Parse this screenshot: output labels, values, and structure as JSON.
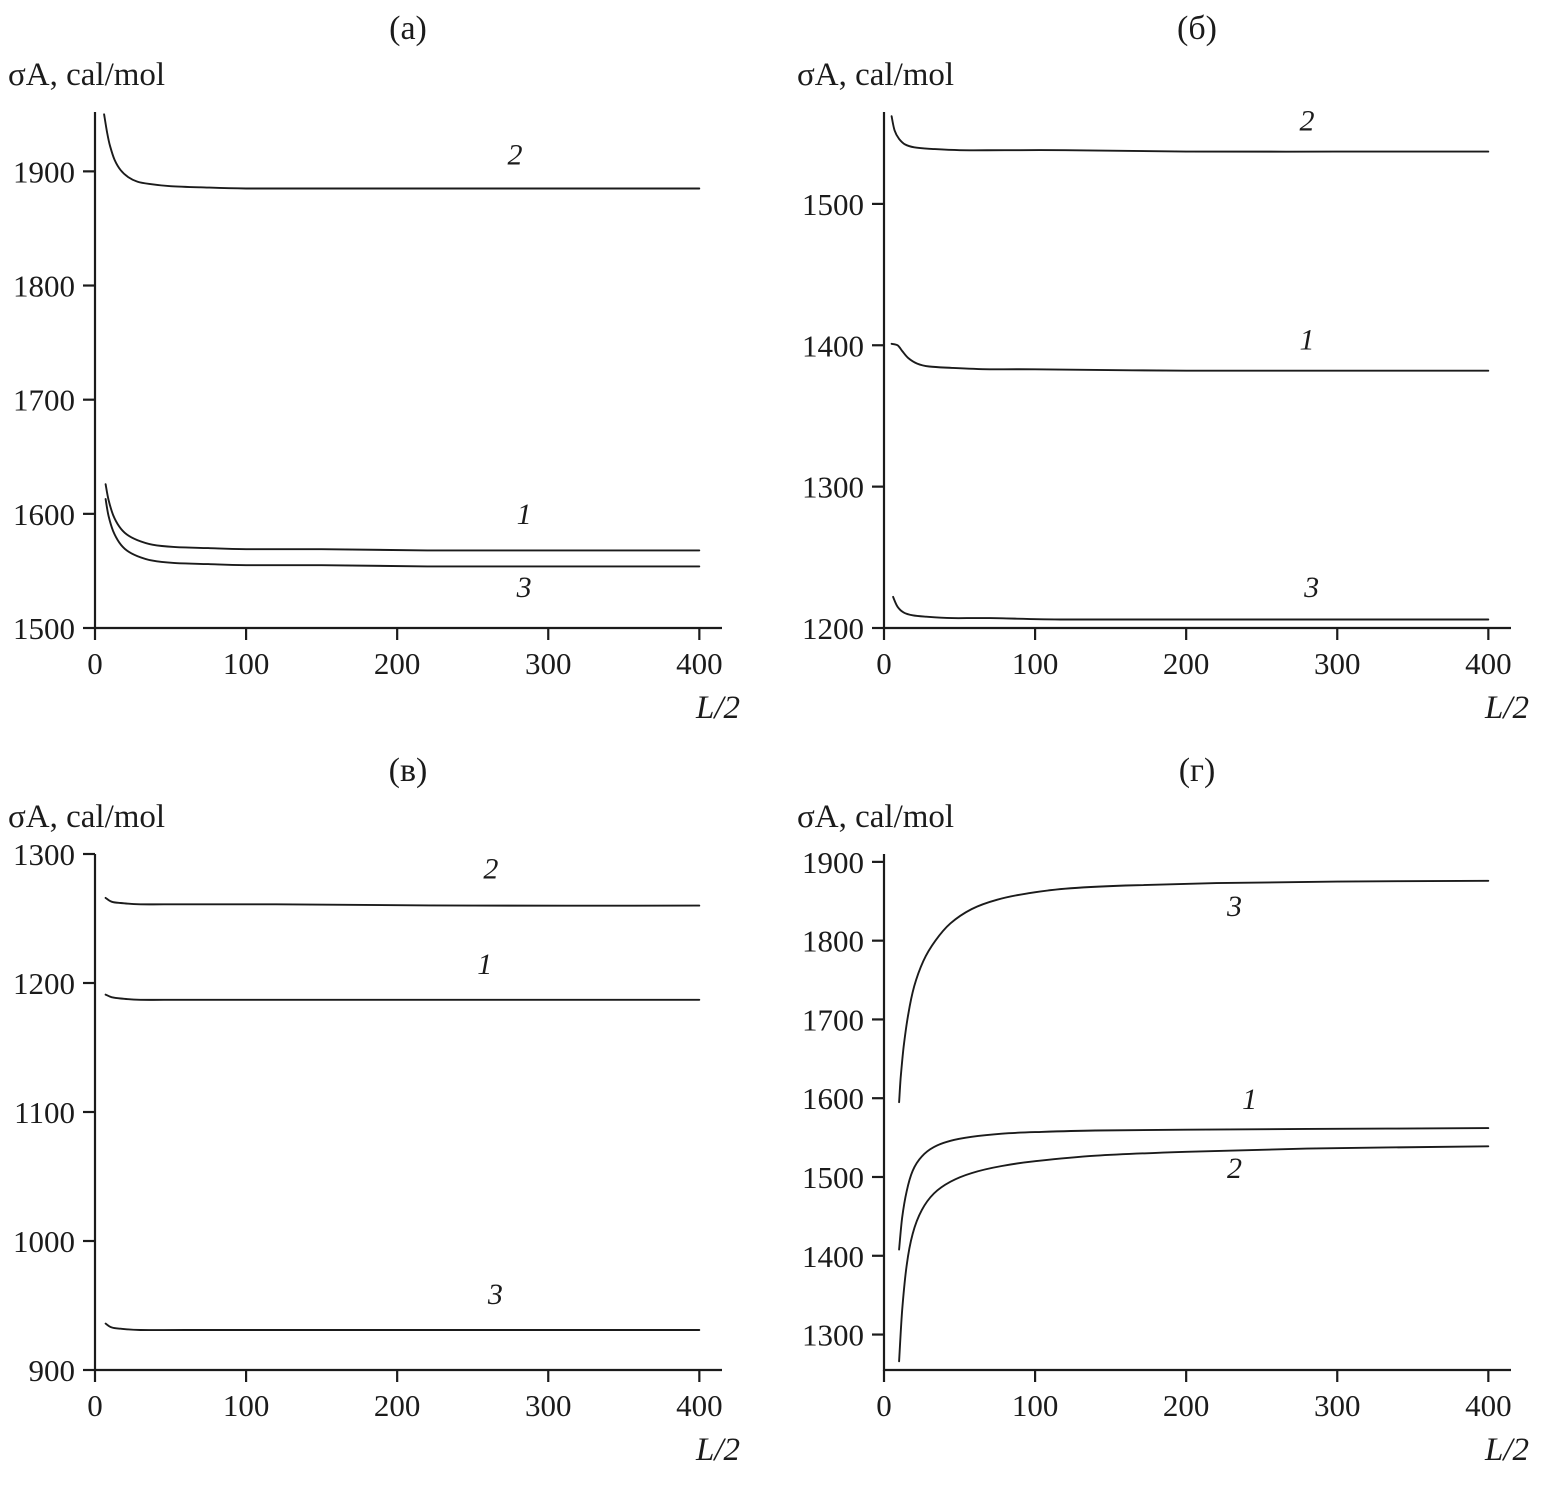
{
  "style": {
    "background": "#ffffff",
    "line_color": "#1b1b1b"
  },
  "chart_data": [
    {
      "id": "a",
      "type": "line",
      "title": "(а)",
      "ylabel": "σA, cal/mol",
      "xlabel": "L/2",
      "x_ticks": [
        0,
        100,
        200,
        300,
        400
      ],
      "y_ticks": [
        1500,
        1600,
        1700,
        1800,
        1900
      ],
      "x_range": [
        0,
        415
      ],
      "y_range": [
        1500,
        1952
      ],
      "grid": false,
      "series": [
        {
          "name": "2",
          "label_pos": [
            278,
            1906
          ],
          "points": [
            [
              6,
              1950
            ],
            [
              8,
              1934
            ],
            [
              10,
              1922
            ],
            [
              13,
              1910
            ],
            [
              17,
              1901
            ],
            [
              22,
              1895
            ],
            [
              28,
              1891
            ],
            [
              36,
              1889
            ],
            [
              50,
              1887
            ],
            [
              70,
              1886
            ],
            [
              100,
              1885
            ],
            [
              150,
              1885
            ],
            [
              220,
              1885
            ],
            [
              300,
              1885
            ],
            [
              400,
              1885
            ]
          ]
        },
        {
          "name": "1",
          "label_pos": [
            284,
            1591
          ],
          "points": [
            [
              7,
              1626
            ],
            [
              9,
              1612
            ],
            [
              12,
              1599
            ],
            [
              16,
              1589
            ],
            [
              21,
              1582
            ],
            [
              28,
              1577
            ],
            [
              38,
              1573
            ],
            [
              52,
              1571
            ],
            [
              75,
              1570
            ],
            [
              100,
              1569
            ],
            [
              150,
              1569
            ],
            [
              220,
              1568
            ],
            [
              300,
              1568
            ],
            [
              400,
              1568
            ]
          ]
        },
        {
          "name": "3",
          "label_pos": [
            284,
            1527
          ],
          "points": [
            [
              7,
              1613
            ],
            [
              9,
              1598
            ],
            [
              12,
              1585
            ],
            [
              16,
              1575
            ],
            [
              21,
              1568
            ],
            [
              28,
              1563
            ],
            [
              38,
              1559
            ],
            [
              52,
              1557
            ],
            [
              75,
              1556
            ],
            [
              100,
              1555
            ],
            [
              150,
              1555
            ],
            [
              220,
              1554
            ],
            [
              300,
              1554
            ],
            [
              400,
              1554
            ]
          ]
        }
      ]
    },
    {
      "id": "b",
      "type": "line",
      "title": "(б)",
      "ylabel": "σA, cal/mol",
      "xlabel": "L/2",
      "x_ticks": [
        0,
        100,
        200,
        300,
        400
      ],
      "y_ticks": [
        1200,
        1300,
        1400,
        1500
      ],
      "x_range": [
        0,
        415
      ],
      "y_range": [
        1200,
        1565
      ],
      "grid": false,
      "series": [
        {
          "name": "2",
          "label_pos": [
            280,
            1552
          ],
          "points": [
            [
              5,
              1562
            ],
            [
              7,
              1552
            ],
            [
              10,
              1546
            ],
            [
              14,
              1542
            ],
            [
              20,
              1540
            ],
            [
              30,
              1539
            ],
            [
              50,
              1538
            ],
            [
              80,
              1538
            ],
            [
              120,
              1538
            ],
            [
              200,
              1537
            ],
            [
              300,
              1537
            ],
            [
              400,
              1537
            ]
          ]
        },
        {
          "name": "1",
          "label_pos": [
            280,
            1397
          ],
          "points": [
            [
              5,
              1401
            ],
            [
              9,
              1400
            ],
            [
              12,
              1396
            ],
            [
              16,
              1391
            ],
            [
              22,
              1387
            ],
            [
              30,
              1385
            ],
            [
              45,
              1384
            ],
            [
              70,
              1383
            ],
            [
              100,
              1383
            ],
            [
              200,
              1382
            ],
            [
              300,
              1382
            ],
            [
              400,
              1382
            ]
          ]
        },
        {
          "name": "3",
          "label_pos": [
            283,
            1222
          ],
          "points": [
            [
              6,
              1222
            ],
            [
              9,
              1215
            ],
            [
              13,
              1211
            ],
            [
              19,
              1209
            ],
            [
              28,
              1208
            ],
            [
              45,
              1207
            ],
            [
              70,
              1207
            ],
            [
              120,
              1206
            ],
            [
              200,
              1206
            ],
            [
              300,
              1206
            ],
            [
              400,
              1206
            ]
          ]
        }
      ]
    },
    {
      "id": "v",
      "type": "line",
      "title": "(в)",
      "ylabel": "σA, cal/mol",
      "xlabel": "L/2",
      "x_ticks": [
        0,
        100,
        200,
        300,
        400
      ],
      "y_ticks": [
        900,
        1000,
        1100,
        1200,
        1300
      ],
      "x_range": [
        0,
        415
      ],
      "y_range": [
        900,
        1300
      ],
      "grid": false,
      "series": [
        {
          "name": "2",
          "label_pos": [
            262,
            1281
          ],
          "points": [
            [
              7,
              1266
            ],
            [
              11,
              1263
            ],
            [
              17,
              1262
            ],
            [
              30,
              1261
            ],
            [
              60,
              1261
            ],
            [
              120,
              1261
            ],
            [
              250,
              1260
            ],
            [
              400,
              1260
            ]
          ]
        },
        {
          "name": "1",
          "label_pos": [
            258,
            1207
          ],
          "points": [
            [
              7,
              1191
            ],
            [
              11,
              1189
            ],
            [
              17,
              1188
            ],
            [
              30,
              1187
            ],
            [
              60,
              1187
            ],
            [
              120,
              1187
            ],
            [
              250,
              1187
            ],
            [
              400,
              1187
            ]
          ]
        },
        {
          "name": "3",
          "label_pos": [
            265,
            951
          ],
          "points": [
            [
              7,
              936
            ],
            [
              11,
              933
            ],
            [
              17,
              932
            ],
            [
              30,
              931
            ],
            [
              60,
              931
            ],
            [
              120,
              931
            ],
            [
              250,
              931
            ],
            [
              400,
              931
            ]
          ]
        }
      ]
    },
    {
      "id": "g",
      "type": "line",
      "title": "(г)",
      "ylabel": "σA, cal/mol",
      "xlabel": "L/2",
      "x_ticks": [
        0,
        100,
        200,
        300,
        400
      ],
      "y_ticks": [
        1300,
        1400,
        1500,
        1600,
        1700,
        1800,
        1900
      ],
      "x_range": [
        0,
        415
      ],
      "y_range": [
        1255,
        1910
      ],
      "grid": false,
      "series": [
        {
          "name": "3",
          "label_pos": [
            232,
            1831
          ],
          "points": [
            [
              10,
              1595
            ],
            [
              11,
              1625
            ],
            [
              13,
              1665
            ],
            [
              16,
              1706
            ],
            [
              20,
              1742
            ],
            [
              26,
              1774
            ],
            [
              34,
              1800
            ],
            [
              44,
              1822
            ],
            [
              58,
              1840
            ],
            [
              75,
              1852
            ],
            [
              95,
              1860
            ],
            [
              120,
              1866
            ],
            [
              160,
              1870
            ],
            [
              220,
              1873
            ],
            [
              300,
              1875
            ],
            [
              400,
              1876
            ]
          ]
        },
        {
          "name": "1",
          "label_pos": [
            242,
            1586
          ],
          "points": [
            [
              10,
              1408
            ],
            [
              12,
              1448
            ],
            [
              15,
              1482
            ],
            [
              19,
              1508
            ],
            [
              25,
              1526
            ],
            [
              33,
              1538
            ],
            [
              44,
              1546
            ],
            [
              58,
              1551
            ],
            [
              78,
              1555
            ],
            [
              100,
              1557
            ],
            [
              140,
              1559
            ],
            [
              200,
              1560
            ],
            [
              280,
              1561
            ],
            [
              400,
              1562
            ]
          ]
        },
        {
          "name": "2",
          "label_pos": [
            232,
            1499
          ],
          "points": [
            [
              10,
              1266
            ],
            [
              12,
              1330
            ],
            [
              15,
              1388
            ],
            [
              19,
              1428
            ],
            [
              25,
              1458
            ],
            [
              33,
              1479
            ],
            [
              44,
              1494
            ],
            [
              58,
              1505
            ],
            [
              78,
              1514
            ],
            [
              100,
              1520
            ],
            [
              140,
              1527
            ],
            [
              200,
              1532
            ],
            [
              280,
              1536
            ],
            [
              400,
              1539
            ]
          ]
        }
      ]
    }
  ]
}
